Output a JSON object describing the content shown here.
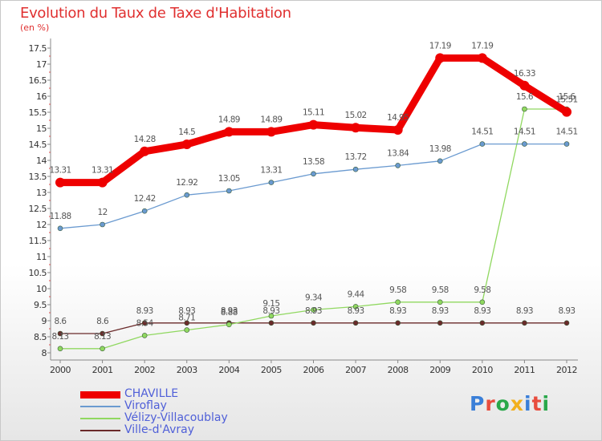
{
  "title": "Evolution du Taux de Taxe d'Habitation",
  "subtitle": "(en %)",
  "logo": {
    "text": "Proxiti",
    "colors": [
      "#3a7fd8",
      "#e84c3d",
      "#2aa84a",
      "#f2b01e",
      "#3a7fd8",
      "#e84c3d",
      "#2aa84a"
    ]
  },
  "chart_data": {
    "type": "line",
    "title": "Evolution du Taux de Taxe d'Habitation",
    "ylabel": "(en %)",
    "xlabel": "",
    "x": [
      "2000",
      "2001",
      "2002",
      "2003",
      "2004",
      "2005",
      "2006",
      "2007",
      "2008",
      "2009",
      "2010",
      "2011",
      "2012"
    ],
    "ylim": [
      8,
      17.5
    ],
    "yticks": [
      "8",
      "8.5",
      "9",
      "9.5",
      "10",
      "10.5",
      "11",
      "11.5",
      "12",
      "12.5",
      "13",
      "13.5",
      "14",
      "14.5",
      "15",
      "15.5",
      "16",
      "16.5",
      "17",
      "17.5"
    ],
    "grid": false,
    "legend_position": "bottom-left",
    "series": [
      {
        "name": "CHAVILLE",
        "color": "#ee0000",
        "values": [
          13.31,
          13.31,
          14.28,
          14.5,
          14.89,
          14.89,
          15.11,
          15.02,
          14.95,
          17.19,
          17.19,
          16.33,
          15.51
        ],
        "labels": [
          "13.31",
          "13.31",
          "14.28",
          "14.5",
          "14.89",
          "14.89",
          "15.11",
          "15.02",
          "14.95",
          "17.19",
          "17.19",
          "16.33",
          "15.51"
        ]
      },
      {
        "name": "Viroflay",
        "color": "#6a9ad0",
        "values": [
          11.88,
          12,
          12.42,
          12.92,
          13.05,
          13.31,
          13.58,
          13.72,
          13.84,
          13.98,
          14.51,
          14.51,
          14.51
        ],
        "labels": [
          "11.88",
          "12",
          "12.42",
          "12.92",
          "13.05",
          "13.31",
          "13.58",
          "13.72",
          "13.84",
          "13.98",
          "14.51",
          "14.51",
          "14.51"
        ]
      },
      {
        "name": "Vélizy-Villacoublay",
        "color": "#90d860",
        "values": [
          8.13,
          8.13,
          8.54,
          8.71,
          8.88,
          9.15,
          9.34,
          9.44,
          9.58,
          9.58,
          9.58,
          15.6,
          15.6
        ],
        "labels": [
          "8.13",
          "8.13",
          "8.54",
          "8.71",
          "8.88",
          "9.15",
          "9.34",
          "9.44",
          "9.58",
          "9.58",
          "9.58",
          "15.6",
          "15.6"
        ]
      },
      {
        "name": "Ville-d'Avray",
        "color": "#6a2a2a",
        "values": [
          8.6,
          8.6,
          8.93,
          8.93,
          8.93,
          8.93,
          8.93,
          8.93,
          8.93,
          8.93,
          8.93,
          8.93,
          8.93
        ],
        "labels": [
          "8.6",
          "8.6",
          "8.93",
          "8.93",
          "8.93",
          "8.93",
          "8.93",
          "8.93",
          "8.93",
          "8.93",
          "8.93",
          "8.93",
          "8.93"
        ]
      }
    ]
  }
}
